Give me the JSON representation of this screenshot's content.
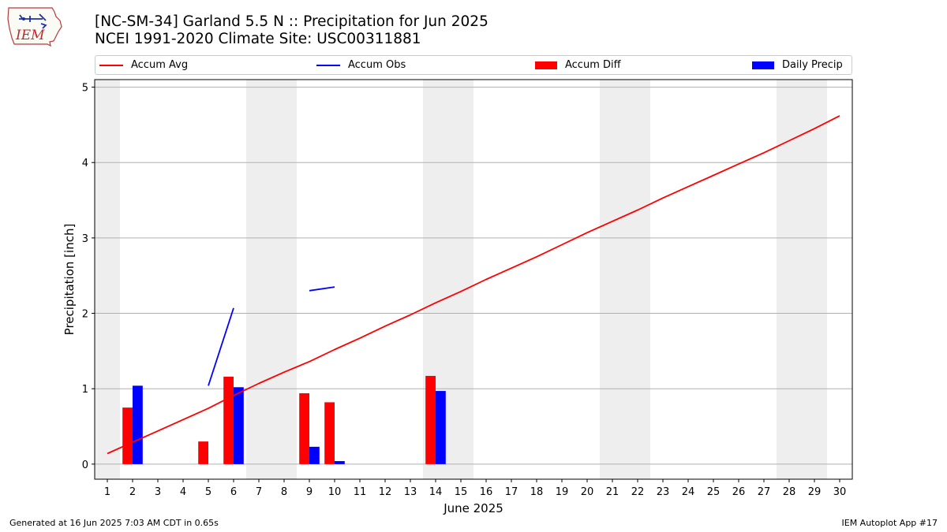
{
  "header": {
    "title_line1": "[NC-SM-34] Garland 5.5 N :: Precipitation for Jun 2025",
    "title_line2": "NCEI 1991-2020 Climate Site: USC00311881",
    "logo_text": "IEM"
  },
  "footer": {
    "generated": "Generated at 16 Jun 2025 7:03 AM CDT in 0.65s",
    "app": "IEM Autoplot App #17"
  },
  "chart_data": {
    "type": "bar",
    "title": "[NC-SM-34] Garland 5.5 N :: Precipitation for Jun 2025",
    "xlabel": "June 2025",
    "ylabel": "Precipitation [inch]",
    "xlim": [
      0.5,
      30.5
    ],
    "ylim": [
      -0.2,
      5.1
    ],
    "x_ticks": [
      1,
      2,
      3,
      4,
      5,
      6,
      7,
      8,
      9,
      10,
      11,
      12,
      13,
      14,
      15,
      16,
      17,
      18,
      19,
      20,
      21,
      22,
      23,
      24,
      25,
      26,
      27,
      28,
      29,
      30
    ],
    "y_ticks": [
      0,
      1,
      2,
      3,
      4,
      5
    ],
    "grid": "horizontal",
    "legend_placement": "top",
    "weekend_shading": [
      [
        0.5,
        1.5
      ],
      [
        6.5,
        8.5
      ],
      [
        13.5,
        15.5
      ],
      [
        20.5,
        22.5
      ],
      [
        27.5,
        29.5
      ]
    ],
    "series": [
      {
        "name": "Accum Avg",
        "kind": "line",
        "color": "#ff0000",
        "x": [
          1,
          2,
          3,
          4,
          5,
          6,
          7,
          8,
          9,
          10,
          11,
          12,
          13,
          14,
          15,
          16,
          17,
          18,
          19,
          20,
          21,
          22,
          23,
          24,
          25,
          26,
          27,
          28,
          29,
          30
        ],
        "values": [
          0.14,
          0.29,
          0.44,
          0.59,
          0.74,
          0.91,
          1.07,
          1.22,
          1.36,
          1.52,
          1.67,
          1.83,
          1.98,
          2.14,
          2.29,
          2.45,
          2.6,
          2.75,
          2.91,
          3.07,
          3.22,
          3.37,
          3.53,
          3.68,
          3.83,
          3.98,
          4.13,
          4.29,
          4.45,
          4.62
        ]
      },
      {
        "name": "Accum Obs",
        "kind": "line",
        "color": "#0000ff",
        "x": [
          1,
          2,
          3,
          4,
          5,
          6,
          7,
          8,
          9,
          10,
          11,
          12,
          13,
          14,
          15,
          16,
          17,
          18,
          19,
          20,
          21,
          22,
          23,
          24,
          25,
          26,
          27,
          28,
          29,
          30
        ],
        "values": [
          null,
          null,
          null,
          null,
          1.04,
          2.07,
          null,
          null,
          2.3,
          2.35,
          null,
          null,
          null,
          null,
          null,
          null,
          null,
          null,
          null,
          null,
          null,
          null,
          null,
          null,
          null,
          null,
          null,
          null,
          null,
          null
        ]
      },
      {
        "name": "Accum Diff",
        "kind": "bar",
        "color": "#ff0000",
        "x": [
          2,
          5,
          6,
          9,
          10,
          14
        ],
        "values": [
          0.75,
          0.3,
          1.16,
          0.94,
          0.82,
          1.17
        ]
      },
      {
        "name": "Daily Precip",
        "kind": "bar",
        "color": "#0000ff",
        "x": [
          2,
          6,
          9,
          10,
          14
        ],
        "values": [
          1.04,
          1.02,
          0.23,
          0.04,
          0.97
        ]
      }
    ]
  }
}
